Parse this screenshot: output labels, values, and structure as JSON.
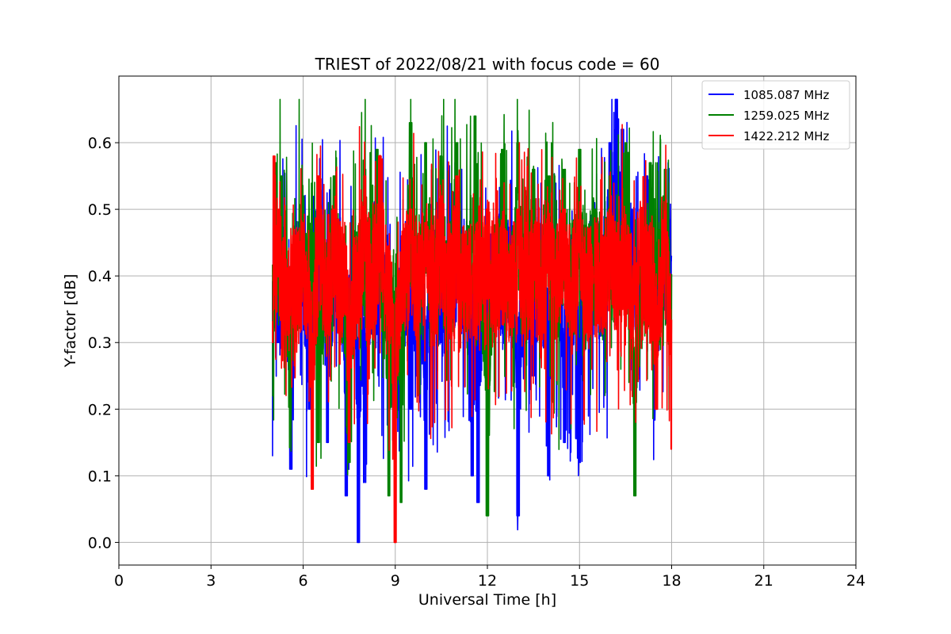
{
  "chart_data": {
    "type": "line",
    "title": "TRIEST of 2022/08/21 with focus code = 60",
    "xlabel": "Universal Time [h]",
    "ylabel": "Y-factor [dB]",
    "xlim": [
      0,
      24
    ],
    "ylim": [
      -0.034,
      0.7
    ],
    "xticks": [
      0,
      3,
      6,
      9,
      12,
      15,
      18,
      21,
      24
    ],
    "yticks": [
      0.0,
      0.1,
      0.2,
      0.3,
      0.4,
      0.5,
      0.6
    ],
    "ytick_labels": [
      "0.0",
      "0.1",
      "0.2",
      "0.3",
      "0.4",
      "0.5",
      "0.6"
    ],
    "grid": true,
    "legend_position": "top-right",
    "x_range": [
      5.0,
      18.0
    ],
    "series": [
      {
        "name": "1085.087 MHz",
        "color": "#0000ff",
        "anchors": [
          [
            5.0,
            0.13
          ],
          [
            5.05,
            0.5
          ],
          [
            5.2,
            0.3
          ],
          [
            5.4,
            0.45
          ],
          [
            5.6,
            0.11
          ],
          [
            5.9,
            0.5
          ],
          [
            6.2,
            0.2
          ],
          [
            6.5,
            0.5
          ],
          [
            6.8,
            0.15
          ],
          [
            7.2,
            0.45
          ],
          [
            7.4,
            0.07
          ],
          [
            7.8,
            0.0
          ],
          [
            8.0,
            0.09
          ],
          [
            8.5,
            0.45
          ],
          [
            9.0,
            0.05
          ],
          [
            9.5,
            0.2
          ],
          [
            10.0,
            0.08
          ],
          [
            10.5,
            0.3
          ],
          [
            11.0,
            0.45
          ],
          [
            11.5,
            0.1
          ],
          [
            11.7,
            0.06
          ],
          [
            12.0,
            0.3
          ],
          [
            13.0,
            0.04
          ],
          [
            13.5,
            0.25
          ],
          [
            14.0,
            0.1
          ],
          [
            14.5,
            0.15
          ],
          [
            15.0,
            0.12
          ],
          [
            15.5,
            0.5
          ],
          [
            16.0,
            0.6
          ],
          [
            16.2,
            0.67
          ],
          [
            16.4,
            0.62
          ],
          [
            16.7,
            0.5
          ],
          [
            17.2,
            0.55
          ],
          [
            17.5,
            0.2
          ],
          [
            17.8,
            0.45
          ],
          [
            18.0,
            0.43
          ]
        ],
        "amplitude": 0.09,
        "drop_depth": 0.2,
        "spike_height": 0.17
      },
      {
        "name": "1259.025 MHz",
        "color": "#008000",
        "anchors": [
          [
            5.0,
            0.22
          ],
          [
            5.1,
            0.57
          ],
          [
            5.3,
            0.55
          ],
          [
            5.6,
            0.2
          ],
          [
            6.0,
            0.52
          ],
          [
            6.5,
            0.15
          ],
          [
            7.0,
            0.55
          ],
          [
            7.5,
            0.12
          ],
          [
            8.0,
            0.56
          ],
          [
            8.4,
            0.59
          ],
          [
            8.8,
            0.07
          ],
          [
            9.2,
            0.06
          ],
          [
            9.5,
            0.63
          ],
          [
            10.0,
            0.6
          ],
          [
            10.5,
            0.58
          ],
          [
            11.0,
            0.6
          ],
          [
            11.6,
            0.64
          ],
          [
            12.0,
            0.04
          ],
          [
            12.5,
            0.59
          ],
          [
            13.0,
            0.6
          ],
          [
            13.5,
            0.56
          ],
          [
            14.0,
            0.55
          ],
          [
            14.5,
            0.56
          ],
          [
            15.0,
            0.59
          ],
          [
            15.5,
            0.5
          ],
          [
            16.0,
            0.55
          ],
          [
            16.5,
            0.6
          ],
          [
            16.8,
            0.07
          ],
          [
            17.3,
            0.57
          ],
          [
            17.8,
            0.56
          ],
          [
            18.0,
            0.3
          ]
        ],
        "amplitude": 0.09,
        "drop_depth": 0.17,
        "spike_height": 0.2
      },
      {
        "name": "1422.212 MHz",
        "color": "#ff0000",
        "anchors": [
          [
            5.0,
            0.3
          ],
          [
            5.05,
            0.58
          ],
          [
            5.2,
            0.5
          ],
          [
            5.5,
            0.35
          ],
          [
            6.0,
            0.45
          ],
          [
            6.3,
            0.08
          ],
          [
            6.5,
            0.55
          ],
          [
            7.0,
            0.5
          ],
          [
            7.5,
            0.15
          ],
          [
            8.0,
            0.55
          ],
          [
            8.5,
            0.58
          ],
          [
            9.0,
            0.0
          ],
          [
            9.5,
            0.5
          ],
          [
            10.0,
            0.48
          ],
          [
            10.5,
            0.52
          ],
          [
            11.0,
            0.55
          ],
          [
            11.5,
            0.4
          ],
          [
            12.0,
            0.5
          ],
          [
            12.5,
            0.45
          ],
          [
            13.0,
            0.5
          ],
          [
            13.5,
            0.4
          ],
          [
            14.0,
            0.45
          ],
          [
            14.5,
            0.5
          ],
          [
            15.0,
            0.45
          ],
          [
            15.5,
            0.4
          ],
          [
            16.0,
            0.5
          ],
          [
            16.5,
            0.45
          ],
          [
            17.0,
            0.5
          ],
          [
            17.5,
            0.2
          ],
          [
            17.8,
            0.45
          ],
          [
            18.0,
            0.14
          ]
        ],
        "amplitude": 0.09,
        "drop_depth": 0.17,
        "spike_height": 0.15
      }
    ]
  }
}
